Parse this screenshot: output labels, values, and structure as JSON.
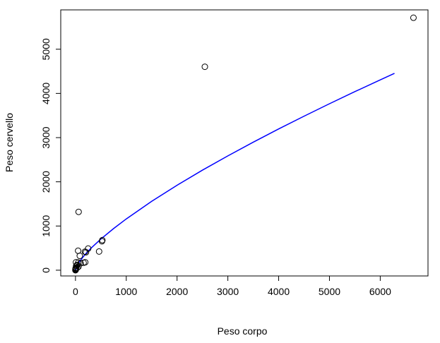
{
  "chart_data": {
    "type": "scatter",
    "title": "",
    "xlabel": "Peso corpo",
    "ylabel": "Peso cervello",
    "xlim": [
      -290,
      6940
    ],
    "ylim": [
      -130,
      5890
    ],
    "x_ticks": [
      0,
      1000,
      2000,
      3000,
      4000,
      5000,
      6000
    ],
    "y_ticks": [
      0,
      1000,
      2000,
      3000,
      4000,
      5000
    ],
    "grid": false,
    "legend": "none",
    "point_color": "#000000",
    "curve_color": "#0000ff",
    "points": [
      {
        "x": 6654,
        "y": 5712
      },
      {
        "x": 2547,
        "y": 4603
      },
      {
        "x": 62,
        "y": 1320
      },
      {
        "x": 521,
        "y": 655
      },
      {
        "x": 529,
        "y": 680
      },
      {
        "x": 465,
        "y": 423
      },
      {
        "x": 250,
        "y": 490
      },
      {
        "x": 207,
        "y": 406
      },
      {
        "x": 187,
        "y": 419
      },
      {
        "x": 52,
        "y": 440
      },
      {
        "x": 100,
        "y": 157
      },
      {
        "x": 192,
        "y": 180
      },
      {
        "x": 160,
        "y": 169
      },
      {
        "x": 85,
        "y": 325
      },
      {
        "x": 36,
        "y": 119
      },
      {
        "x": 27,
        "y": 115
      },
      {
        "x": 55,
        "y": 175
      },
      {
        "x": 10,
        "y": 179
      },
      {
        "x": 14,
        "y": 98
      },
      {
        "x": 6,
        "y": 50
      },
      {
        "x": 3,
        "y": 25
      },
      {
        "x": 1,
        "y": 6
      },
      {
        "x": 4,
        "y": 12
      },
      {
        "x": 10,
        "y": 58
      },
      {
        "x": 2,
        "y": 10
      },
      {
        "x": 0,
        "y": 1
      },
      {
        "x": 1,
        "y": 3
      },
      {
        "x": 3,
        "y": 40
      },
      {
        "x": 35,
        "y": 56
      },
      {
        "x": 60,
        "y": 81
      },
      {
        "x": 0,
        "y": 0
      },
      {
        "x": 4,
        "y": 39
      },
      {
        "x": 1,
        "y": 12
      }
    ],
    "curve": {
      "label": "",
      "x": [
        0,
        50,
        100,
        150,
        200,
        300,
        500,
        750,
        1000,
        1500,
        2000,
        2500,
        3000,
        3500,
        4000,
        4500,
        5000,
        5500,
        6000,
        6280
      ],
      "y": [
        0,
        137,
        225,
        300,
        369,
        492,
        705,
        942,
        1160,
        1558,
        1922,
        2264,
        2587,
        2897,
        3196,
        3485,
        3766,
        4040,
        4306,
        4453
      ]
    }
  }
}
